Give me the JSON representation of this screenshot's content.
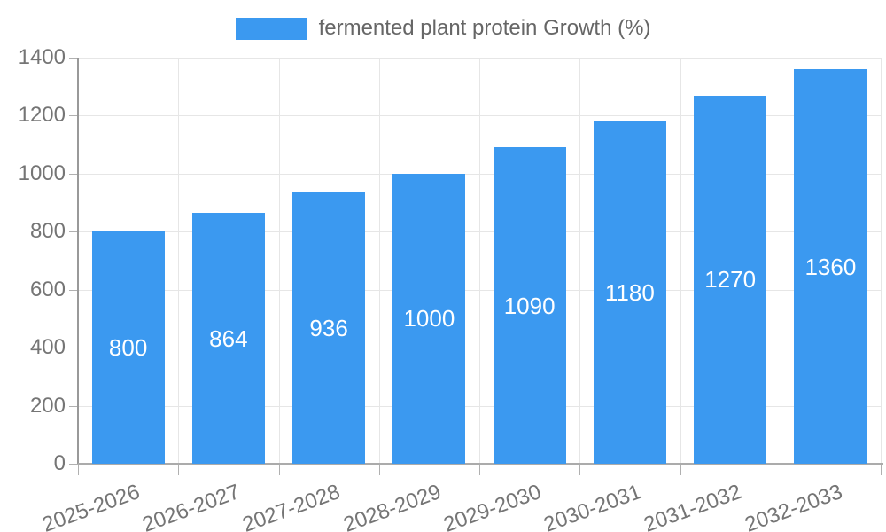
{
  "chart_data": {
    "type": "bar",
    "title": "",
    "legend": "fermented plant protein Growth (%)",
    "legend_position": "top",
    "categories": [
      "2025-2026",
      "2026-2027",
      "2027-2028",
      "2028-2029",
      "2029-2030",
      "2030-2031",
      "2031-2032",
      "2032-2033"
    ],
    "values": [
      800,
      864,
      936,
      1000,
      1090,
      1180,
      1270,
      1360
    ],
    "xlabel": "",
    "ylabel": "",
    "ylim": [
      0,
      1400
    ],
    "ytick_step": 200,
    "grid": true,
    "bar_value_labels": [
      "800",
      "864",
      "936",
      "1000",
      "1090",
      "1180",
      "1270",
      "1360"
    ],
    "colors": {
      "bar": "#3b99f0",
      "bar_label_text": "#ffffff",
      "tick_text": "#757575",
      "legend_text": "#666666",
      "gridline": "#e6e6e6",
      "axis": "#999999"
    }
  }
}
